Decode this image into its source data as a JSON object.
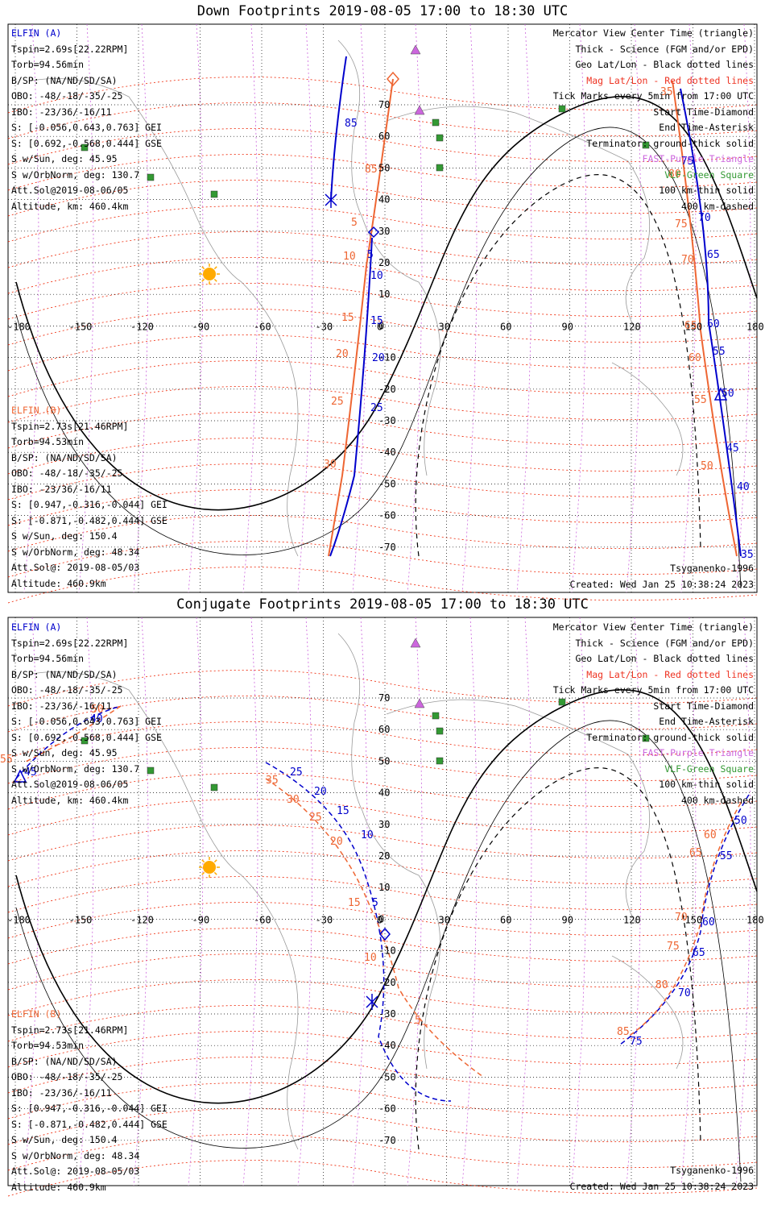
{
  "colors": {
    "elfin_a": "#0000cc",
    "elfin_b": "#ee6633",
    "mag_grid": "#ee2200",
    "geo_grid": "#000000",
    "coast": "#999999",
    "fast": "#cc66dd",
    "vlf": "#339933",
    "sun": "#ffaa00"
  },
  "panels": [
    {
      "title": "Down Footprints 2019-08-05 17:00 to 18:30 UTC",
      "elfin_a": {
        "title": "ELFIN (A)",
        "lines": [
          "Tspin=2.69s[22.22RPM]",
          "Torb=94.56min",
          "B/SP: (NA/ND/SD/SA)",
          "OBO: -48/-18/-35/-25",
          "IBO: -23/36/-16/11",
          "S: [-0.056,0.643,0.763] GEI",
          "S: [0.692,-0.568,0.444] GSE",
          "S w/Sun, deg: 45.95",
          "S w/OrbNorm, deg: 130.7",
          "Att.Sol@2019-08-06/05",
          "Altitude, km: 460.4km"
        ]
      },
      "elfin_b": {
        "title": "ELFIN (B)",
        "lines": [
          "Tspin=2.73s[21.46RPM]",
          "Torb=94.53min",
          "B/SP: (NA/ND/SD/SA)",
          "OBO: -48/-18/-35/-25",
          "IBO: -23/36/-16/11",
          "S: [0.947,-0.316,-0.044] GEI",
          "S: [-0.871,-0.482,0.444] GSE",
          "S w/Sun, deg: 150.4",
          "S w/OrbNorm, deg: 48.34",
          "Att.Sol@: 2019-08-05/03",
          "Altitude: 460.9km"
        ]
      },
      "legend": [
        "Mercator View Center Time (triangle)",
        "Thick - Science (FGM and/or EPD)",
        "Geo Lat/Lon - Black dotted lines",
        "Mag Lat/Lon - Red dotted lines",
        "Tick Marks every 5min from 17:00 UTC",
        "Start Time-Diamond",
        "End Time-Asterisk",
        "Terminator: ground-thick solid",
        "FAST-Purple Triangle",
        "VLF-Green Square",
        "100 km-thin solid",
        "400 km-dashed"
      ],
      "model": "Tsyganenko-1996",
      "created": "Created: Wed Jan 25 10:38:24 2023",
      "lon_ticks": [
        "-180",
        "-150",
        "-120",
        "-90",
        "-60",
        "-30",
        "0",
        "30",
        "60",
        "90",
        "120",
        "150",
        "180"
      ],
      "lat_ticks": [
        "70",
        "60",
        "50",
        "40",
        "30",
        "20",
        "10",
        "0",
        "-10",
        "-20",
        "-30",
        "-40",
        "-50",
        "-60",
        "-70"
      ],
      "track_a_labels": [
        "85",
        "5",
        "10",
        "15",
        "20",
        "25",
        "75",
        "70",
        "65",
        "60",
        "55",
        "50",
        "45",
        "40",
        "35"
      ],
      "track_b_labels": [
        "85",
        "5",
        "10",
        "15",
        "20",
        "25",
        "30",
        "35",
        "80",
        "75",
        "70",
        "65",
        "60",
        "55",
        "50"
      ]
    },
    {
      "title": "Conjugate Footprints 2019-08-05 17:00 to 18:30 UTC",
      "elfin_a": {
        "title": "ELFIN (A)",
        "lines": [
          "Tspin=2.69s[22.22RPM]",
          "Torb=94.56min",
          "B/SP: (NA/ND/SD/SA)",
          "OBO: -48/-18/-35/-25",
          "IBO: -23/36/-16/11",
          "S: [-0.056,0.643,0.763] GEI",
          "S: [0.692,-0.568,0.444] GSE",
          "S w/Sun, deg: 45.95",
          "S w/OrbNorm, deg: 130.7",
          "Att.Sol@2019-08-06/05",
          "Altitude, km: 460.4km"
        ]
      },
      "elfin_b": {
        "title": "ELFIN (B)",
        "lines": [
          "Tspin=2.73s[21.46RPM]",
          "Torb=94.53min",
          "B/SP: (NA/ND/SD/SA)",
          "OBO: -48/-18/-35/-25",
          "IBO: -23/36/-16/11",
          "S: [0.947,-0.316,-0.044] GEI",
          "S: [-0.871,-0.482,0.444] GSE",
          "S w/Sun, deg: 150.4",
          "S w/OrbNorm, deg: 48.34",
          "Att.Sol@: 2019-08-05/03",
          "Altitude: 460.9km"
        ]
      },
      "legend": [
        "Mercator View Center Time (triangle)",
        "Thick - Science (FGM and/or EPD)",
        "Geo Lat/Lon - Black dotted lines",
        "Mag Lat/Lon - Red dotted lines",
        "Tick Marks every 5min from 17:00 UTC",
        "Start Time-Diamond",
        "End Time-Asterisk",
        "Terminator: ground-thick solid",
        "FAST-Purple Triangle",
        "VLF-Green Square",
        "100 km-thin solid",
        "400 km-dashed"
      ],
      "model": "Tsyganenko-1996",
      "created": "Created: Wed Jan 25 10:38:24 2023",
      "lon_ticks": [
        "-180",
        "-150",
        "-120",
        "-90",
        "-60",
        "-30",
        "0",
        "30",
        "60",
        "90",
        "120",
        "150",
        "180"
      ],
      "lat_ticks": [
        "70",
        "60",
        "50",
        "40",
        "30",
        "20",
        "10",
        "0",
        "-10",
        "-20",
        "-30",
        "-40",
        "-50",
        "-60",
        "-70"
      ],
      "track_a_labels": [
        "40",
        "45",
        "25",
        "20",
        "15",
        "10",
        "5",
        "50",
        "55",
        "60",
        "65",
        "70",
        "75"
      ],
      "track_b_labels": [
        "50",
        "55",
        "35",
        "30",
        "25",
        "20",
        "15",
        "10",
        "5",
        "60",
        "65",
        "70",
        "75",
        "80",
        "85"
      ]
    }
  ]
}
